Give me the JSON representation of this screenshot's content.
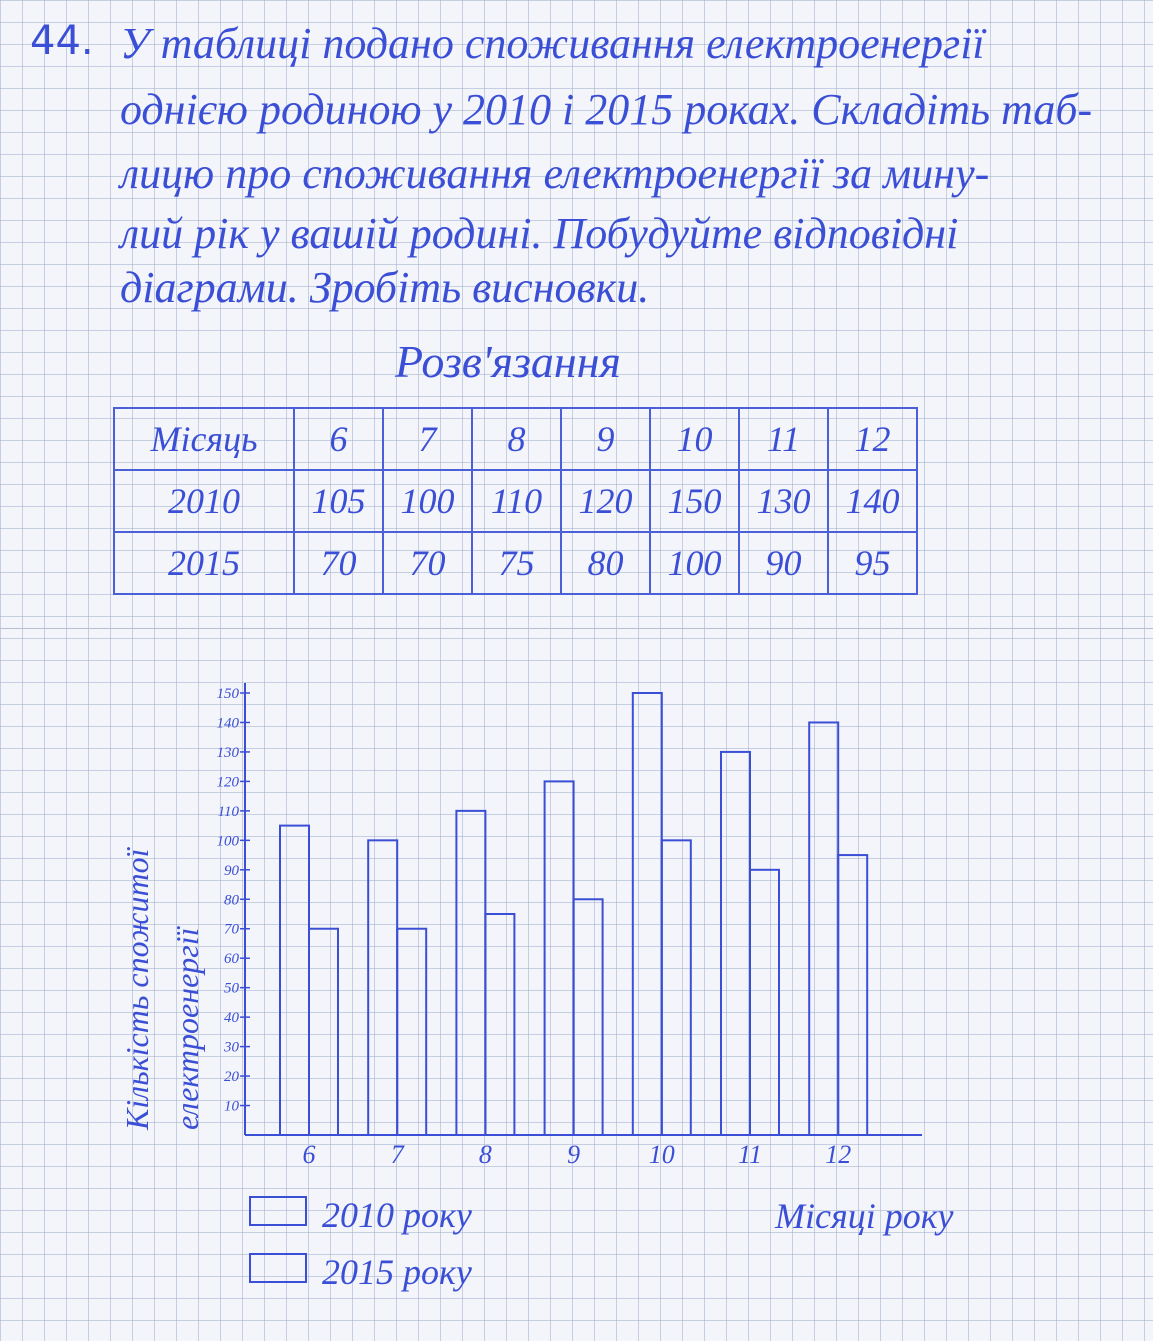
{
  "problem": {
    "number": "44.",
    "lines": [
      "У таблиці подано споживання електроенергії",
      "однією родиною у 2010 і 2015 роках. Складіть таб-",
      "лицю про споживання електроенергії за мину-",
      "лий рік у вашій родині. Побудуйте відповідні",
      "діаграми. Зробіть висновки."
    ]
  },
  "solution_title": "Розв'язання",
  "table": {
    "header": [
      "Місяць",
      "6",
      "7",
      "8",
      "9",
      "10",
      "11",
      "12"
    ],
    "rows": [
      [
        "2010",
        "105",
        "100",
        "110",
        "120",
        "150",
        "130",
        "140"
      ],
      [
        "2015",
        "70",
        "70",
        "75",
        "80",
        "100",
        "90",
        "95"
      ]
    ]
  },
  "colors": {
    "ink": "#3b4fd6",
    "paper": "#f3f5fa",
    "grid": "#a0afcd"
  },
  "chart_data": {
    "type": "bar",
    "categories": [
      "6",
      "7",
      "8",
      "9",
      "10",
      "11",
      "12"
    ],
    "series": [
      {
        "name": "2010 року",
        "values": [
          105,
          100,
          110,
          120,
          150,
          130,
          140
        ]
      },
      {
        "name": "2015 року",
        "values": [
          70,
          70,
          75,
          80,
          100,
          90,
          95
        ]
      }
    ],
    "xlabel": "Місяці року",
    "ylabel": [
      "Кількість спожитої",
      "електроенергії"
    ],
    "yticks": [
      10,
      20,
      30,
      40,
      50,
      60,
      70,
      80,
      90,
      100,
      110,
      120,
      130,
      140,
      150
    ],
    "ylim": [
      0,
      150
    ],
    "grid": false,
    "legend": "bottom-left"
  }
}
